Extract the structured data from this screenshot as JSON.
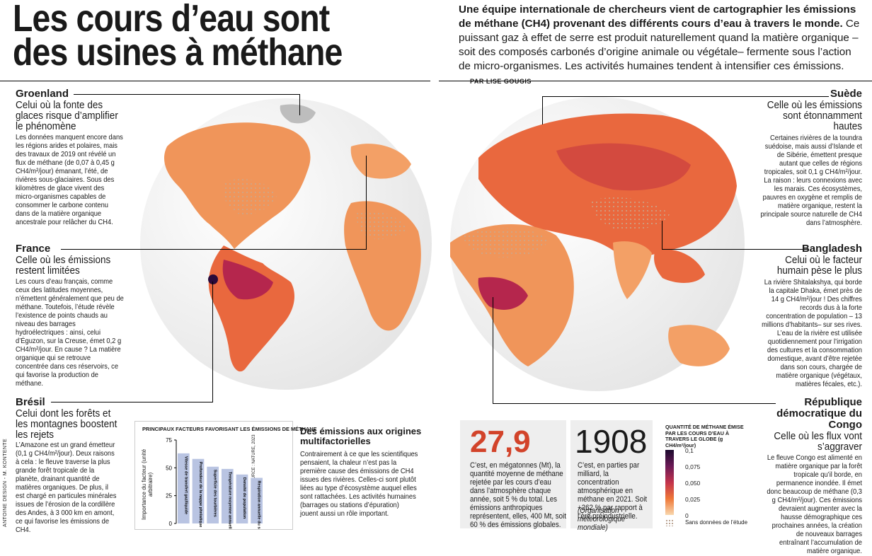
{
  "headline": {
    "line1": "Les cours d’eau sont",
    "line2": "des usines à méthane"
  },
  "intro": {
    "lead": "Une équipe internationale de chercheurs vient de cartographier les émissions de méthane (CH4) provenant des différents cours d’eau à travers le monde.",
    "body": "Ce puissant gaz à effet de serre est produit naturellement quand la matière organique –soit des composés carbonés d’origine animale ou végétale– fermente sous l’action de micro-organismes. Les activités humaines tendent à intensifier ces émissions.",
    "byline": "PAR LISE GOUGIS"
  },
  "sections": {
    "groenland": {
      "title": "Groenland",
      "subtitle": "Celui où la fonte des glaces risque d’amplifier le phénomène",
      "body": "Les données manquent encore dans les régions arides et polaires, mais des travaux de 2019 ont révélé un flux de méthane (de 0,07 à 0,45 g CH4/m²/jour) émanant, l’été, de rivières sous-glaciaires. Sous des kilomètres de glace vivent des micro-organismes capables de consommer le carbone contenu dans de la matière organique ancestrale pour relâcher du CH4."
    },
    "france": {
      "title": "France",
      "subtitle": "Celle où les émissions restent limitées",
      "body": "Les cours d’eau français, comme ceux des latitudes moyennes, n’émettent généralement que peu de méthane. Toutefois, l’étude révèle l’existence de points chauds au niveau des barrages hydroélectriques : ainsi, celui d’Éguzon, sur la Creuse, émet 0,2 g CH4/m²/jour. En cause ? La matière organique qui se retrouve concentrée dans ces réservoirs, ce qui favorise la production de méthane."
    },
    "bresil": {
      "title": "Brésil",
      "subtitle": "Celui dont les forêts et les montagnes boostent les rejets",
      "body": "L’Amazone est un grand émetteur (0,1 g CH4/m²/jour). Deux raisons à cela : le fleuve traverse la plus grande forêt tropicale de la planète, drainant quantité de matières organiques. De plus, il est chargé en particules minérales issues de l’érosion de la cordillère des Andes, à 3 000 km en amont, ce qui favorise les émissions de CH4."
    },
    "suede": {
      "title": "Suède",
      "subtitle": "Celle où les émissions sont étonnamment hautes",
      "body": "Certaines rivières de la toundra suédoise, mais aussi d’Islande et de Sibérie, émettent presque autant que celles de régions tropicales, soit 0,1 g CH4/m²/jour. La raison : leurs connexions avec les marais. Ces écosystèmes, pauvres en oxygène et remplis de matière organique, restent la principale source naturelle de CH4 dans l’atmosphère."
    },
    "bangladesh": {
      "title": "Bangladesh",
      "subtitle": "Celui où le facteur humain pèse le plus",
      "body": "La rivière Shitalakshya, qui borde la capitale Dhaka, émet près de 14 g CH4/m²/jour ! Des chiffres records dus à la forte concentration de population – 13 millions d’habitants– sur ses rives. L’eau de la rivière est utilisée quotidiennement pour l’irrigation des cultures et la consommation domestique, avant d’être rejetée dans son cours, chargée de matière organique (végétaux, matières fécales, etc.)."
    },
    "congo": {
      "title": "République démocratique du Congo",
      "subtitle": "Celle où les flux vont s’aggraver",
      "body": "Le fleuve Congo est alimenté en matière organique par la forêt tropicale qu’il borde, en permanence inondée. Il émet donc beaucoup de méthane (0,3 g CH4/m²/jour). Ces émissions devraient augmenter avec la hausse démographique ces prochaines années, la création de nouveaux barrages entraînant l’accumulation de matière organique."
    }
  },
  "factors_chart": {
    "heading": "PRINCIPAUX FACTEURS FAVORISANT LES ÉMISSIONS DE MÉTHANE",
    "ylabel": "Importance du facteur (unité arbitraire)",
    "source": "SOURCE : NATURE, 2023",
    "bar_color": "#b9c4e2"
  },
  "chart_data": {
    "type": "bar",
    "title": "PRINCIPAUX FACTEURS FAVORISANT LES ÉMISSIONS DE MÉTHANE",
    "ylabel": "Importance du facteur (unité arbitraire)",
    "categories": [
      "Vitesse de transfert gaz/liquide",
      "Profondeur de la nappe phréatique",
      "Superficie des tourbières",
      "Température moyenne annuelle",
      "Densité de population",
      "Respiration annuelle du sol"
    ],
    "values": [
      63,
      58,
      51,
      49,
      44,
      41
    ],
    "ylim": [
      0,
      75
    ],
    "yticks": [
      0,
      25,
      50,
      75
    ]
  },
  "multifactor": {
    "title": "Des émissions aux origines multifactorielles",
    "body": "Contrairement à ce que les scientifiques pensaient, la chaleur n’est pas la première cause des émissions de CH4 issues des rivières. Celles-ci sont plutôt liées au type d’écosystème auquel elles sont rattachées. Les activités humaines (barrages ou stations d’épuration) jouent aussi un rôle important."
  },
  "stats": {
    "stat1": {
      "number": "27,9",
      "text": "C’est, en mégatonnes (Mt), la quantité moyenne de méthane rejetée par les cours d’eau dans l’atmosphère chaque année, soit 5 % du total. Les émissions anthropiques représentent, elles, 400 Mt, soit 60 % des émissions globales."
    },
    "stat2": {
      "number": "1908",
      "text": "C’est, en parties par milliard, la concentration atmosphérique en méthane en 2021. Soit +262 % par rapport à l’ère préindustrielle.",
      "source": "(Organisation météorologique mondiale)"
    }
  },
  "legend": {
    "title": "QUANTITÉ DE MÉTHANE ÉMISE PAR LES COURS D’EAU À TRAVERS LE GLOBE (g CH4/m²/jour)",
    "ticks": [
      "0,1",
      "0,075",
      "0,050",
      "0,025",
      "0"
    ],
    "no_data": "Sans données de l’étude",
    "colors": [
      "#1c0a2e",
      "#6b1a56",
      "#c2334c",
      "#ef7838",
      "#f8d7ad"
    ]
  },
  "credit": "ANTOINE DESIGN - M. KONTENTE",
  "colors": {
    "high": "#5a0f4a",
    "mid": "#d64a3a",
    "low": "#f4b27a",
    "ocean": "#ffffff"
  }
}
